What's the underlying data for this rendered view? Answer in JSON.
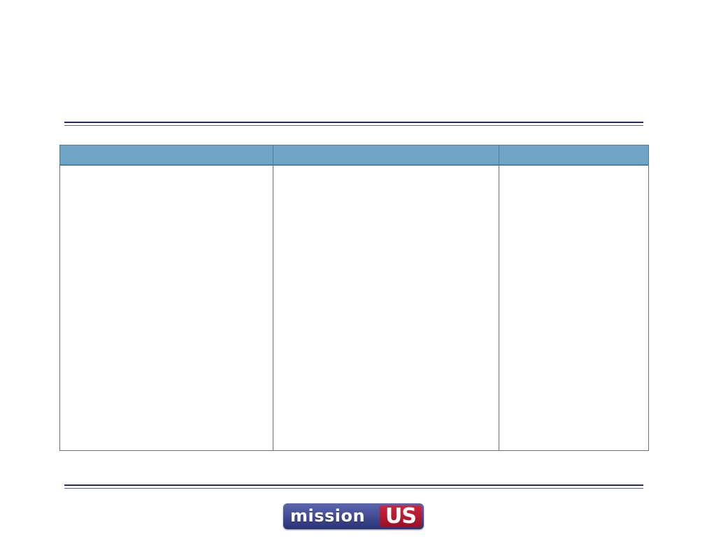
{
  "document": {
    "table": {
      "headers": [
        "",
        "",
        ""
      ],
      "rows": [
        [
          "",
          "",
          ""
        ]
      ]
    }
  },
  "footer": {
    "logo": {
      "word": "mission",
      "mark": "US",
      "colors": {
        "badge": "#3f4898",
        "mark": "#c51d37"
      }
    }
  },
  "colors": {
    "rule": "#262a6b",
    "header_fill": "#6fa4c6"
  }
}
